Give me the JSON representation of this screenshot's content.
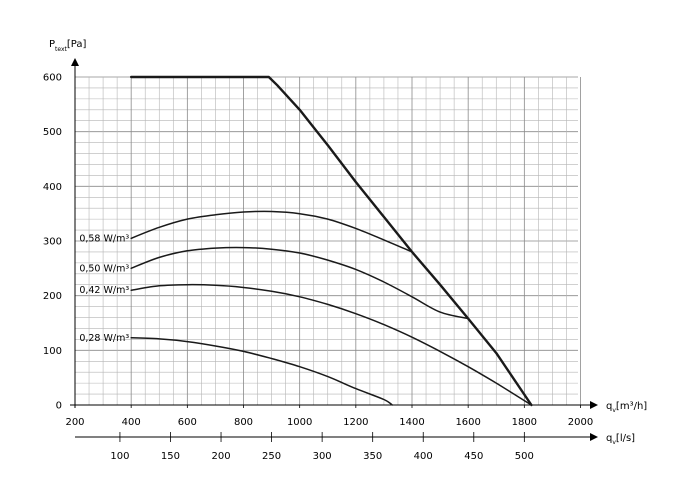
{
  "chart_data": {
    "type": "line",
    "title": "",
    "ylabel": {
      "main": "P",
      "sub": "text",
      "unit": "[Pa]"
    },
    "xlabel": {
      "main": "q",
      "sub": "v",
      "unit": "[m³/h]"
    },
    "x2label": {
      "main": "q",
      "sub": "v",
      "unit": "[l/s]"
    },
    "xlim": [
      200,
      2000
    ],
    "ylim": [
      0,
      600
    ],
    "x_ticks": [
      200,
      400,
      600,
      800,
      1000,
      1200,
      1400,
      1600,
      1800,
      2000
    ],
    "y_ticks": [
      0,
      100,
      200,
      300,
      400,
      500,
      600
    ],
    "x2_ticks": [
      100,
      150,
      200,
      250,
      300,
      350,
      400,
      450,
      500
    ],
    "grid": true,
    "series": [
      {
        "name": "",
        "role": "max-curve",
        "points": [
          [
            400,
            600
          ],
          [
            890,
            600
          ],
          [
            920,
            585
          ],
          [
            1000,
            540
          ],
          [
            1100,
            475
          ],
          [
            1200,
            408
          ],
          [
            1300,
            344
          ],
          [
            1400,
            280
          ],
          [
            1500,
            220
          ],
          [
            1600,
            158
          ],
          [
            1700,
            95
          ],
          [
            1825,
            0
          ]
        ]
      },
      {
        "name": "0,58 W/m³",
        "points": [
          [
            400,
            305
          ],
          [
            500,
            325
          ],
          [
            600,
            340
          ],
          [
            700,
            348
          ],
          [
            800,
            353
          ],
          [
            900,
            354
          ],
          [
            1000,
            350
          ],
          [
            1100,
            340
          ],
          [
            1200,
            323
          ],
          [
            1300,
            302
          ],
          [
            1400,
            280
          ]
        ]
      },
      {
        "name": "0,50 W/m³",
        "points": [
          [
            400,
            250
          ],
          [
            500,
            270
          ],
          [
            600,
            282
          ],
          [
            700,
            287
          ],
          [
            800,
            288
          ],
          [
            900,
            285
          ],
          [
            1000,
            278
          ],
          [
            1100,
            265
          ],
          [
            1200,
            248
          ],
          [
            1300,
            225
          ],
          [
            1400,
            198
          ],
          [
            1500,
            170
          ],
          [
            1600,
            158
          ]
        ]
      },
      {
        "name": "0,42 W/m³",
        "points": [
          [
            400,
            210
          ],
          [
            500,
            218
          ],
          [
            600,
            220
          ],
          [
            700,
            219
          ],
          [
            800,
            215
          ],
          [
            900,
            208
          ],
          [
            1000,
            198
          ],
          [
            1100,
            184
          ],
          [
            1200,
            167
          ],
          [
            1300,
            147
          ],
          [
            1400,
            124
          ],
          [
            1500,
            98
          ],
          [
            1600,
            70
          ],
          [
            1700,
            40
          ],
          [
            1825,
            0
          ]
        ]
      },
      {
        "name": "0,28 W/m³",
        "points": [
          [
            400,
            123
          ],
          [
            500,
            121
          ],
          [
            600,
            116
          ],
          [
            700,
            108
          ],
          [
            800,
            98
          ],
          [
            900,
            85
          ],
          [
            1000,
            70
          ],
          [
            1100,
            52
          ],
          [
            1200,
            30
          ],
          [
            1300,
            10
          ],
          [
            1330,
            0
          ]
        ]
      }
    ]
  }
}
